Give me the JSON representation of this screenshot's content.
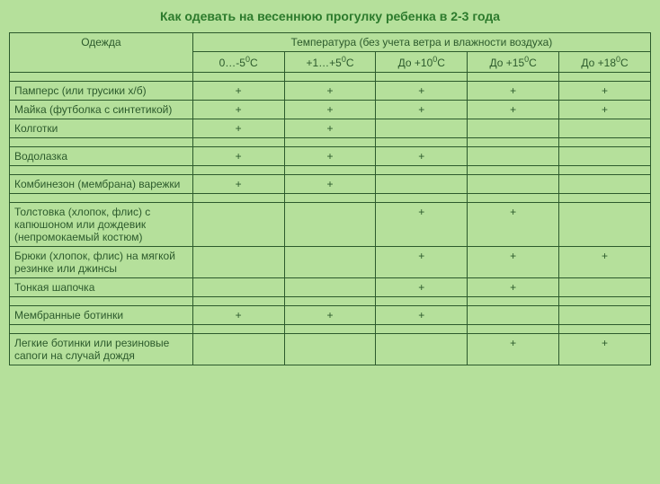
{
  "title": "Как одевать на весеннюю прогулку ребенка в 2-3 года",
  "headers": {
    "clothing": "Одежда",
    "temperature": "Температура (без учета ветра и влажности воздуха)",
    "temp_cols": [
      "0…-5",
      "+1…+5",
      "До +10",
      "До +15",
      "До +18"
    ]
  },
  "items": [
    {
      "name": "Памперс (или трусики х/б)",
      "values": [
        "+",
        "+",
        "+",
        "+",
        "+"
      ]
    },
    {
      "name": "Майка (футболка с синтетикой)",
      "values": [
        "+",
        "+",
        "+",
        "+",
        "+"
      ]
    },
    {
      "name": "Колготки",
      "values": [
        "+",
        "+",
        "",
        "",
        ""
      ]
    },
    {
      "name": "Водолазка",
      "values": [
        "+",
        "+",
        "+",
        "",
        ""
      ]
    },
    {
      "name": "Комбинезон (мембрана) варежки",
      "values": [
        "+",
        "+",
        "",
        "",
        ""
      ]
    },
    {
      "name": "Толстовка (хлопок, флис) с капюшоном или дождевик (непромокаемый костюм)",
      "values": [
        "",
        "",
        "+",
        "+",
        ""
      ]
    },
    {
      "name": "Брюки (хлопок, флис) на мягкой резинке или джинсы",
      "values": [
        "",
        "",
        "+",
        "+",
        "+"
      ]
    },
    {
      "name": "Тонкая шапочка",
      "values": [
        "",
        "",
        "+",
        "+",
        ""
      ]
    },
    {
      "name": "Мембранные ботинки",
      "values": [
        "+",
        "+",
        "+",
        "",
        ""
      ]
    },
    {
      "name": "Легкие ботинки или резиновые сапоги на случай дождя",
      "values": [
        "",
        "",
        "",
        "+",
        "+"
      ]
    }
  ],
  "spacer_after": [
    2,
    3,
    4,
    7,
    8
  ],
  "colors": {
    "background": "#b5e09b",
    "title": "#2c7a2c",
    "border": "#2c5a2c",
    "text": "#2c5a2c"
  }
}
